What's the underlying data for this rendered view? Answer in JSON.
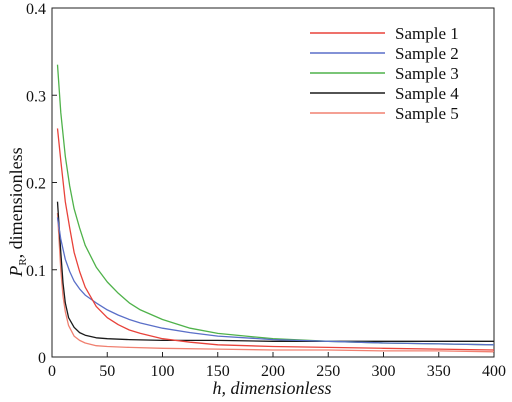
{
  "chart_data": {
    "type": "line",
    "xlabel": "h, dimensionless",
    "ylabel_main": "P",
    "ylabel_sub": "R",
    "ylabel_rest": ", dimensionless",
    "xlim": [
      0,
      400
    ],
    "ylim": [
      0,
      0.4
    ],
    "x_ticks": [
      0,
      50,
      100,
      150,
      200,
      250,
      300,
      350,
      400
    ],
    "x_tick_labels": [
      "0",
      "50",
      "100",
      "150",
      "200",
      "250",
      "300",
      "350",
      "400"
    ],
    "y_ticks": [
      0,
      0.1,
      0.2,
      0.3,
      0.4
    ],
    "y_tick_labels": [
      "0",
      "0.1",
      "0.2",
      "0.3",
      "0.4"
    ],
    "grid": false,
    "legend_position": "top-right",
    "series": [
      {
        "name": "Sample 1",
        "color": "#e8423a",
        "x": [
          5,
          8,
          12,
          16,
          20,
          25,
          30,
          40,
          50,
          60,
          70,
          80,
          100,
          125,
          150,
          200,
          250,
          300,
          350,
          400
        ],
        "y": [
          0.262,
          0.225,
          0.178,
          0.148,
          0.12,
          0.098,
          0.08,
          0.058,
          0.045,
          0.037,
          0.031,
          0.027,
          0.021,
          0.017,
          0.014,
          0.012,
          0.011,
          0.01,
          0.009,
          0.008
        ]
      },
      {
        "name": "Sample 2",
        "color": "#5a6fc8",
        "x": [
          5,
          8,
          12,
          16,
          20,
          25,
          30,
          40,
          50,
          60,
          70,
          80,
          100,
          125,
          150,
          200,
          250,
          300,
          350,
          400
        ],
        "y": [
          0.16,
          0.135,
          0.112,
          0.098,
          0.087,
          0.078,
          0.071,
          0.062,
          0.054,
          0.048,
          0.043,
          0.039,
          0.033,
          0.028,
          0.024,
          0.02,
          0.018,
          0.016,
          0.015,
          0.014
        ]
      },
      {
        "name": "Sample 3",
        "color": "#4fb24a",
        "x": [
          5,
          8,
          12,
          16,
          20,
          25,
          30,
          40,
          50,
          60,
          70,
          80,
          100,
          125,
          150,
          200,
          250,
          300,
          350,
          400
        ],
        "y": [
          0.335,
          0.28,
          0.23,
          0.196,
          0.17,
          0.148,
          0.128,
          0.103,
          0.086,
          0.073,
          0.062,
          0.054,
          0.043,
          0.033,
          0.027,
          0.021,
          0.018,
          0.016,
          0.015,
          0.014
        ]
      },
      {
        "name": "Sample 4",
        "color": "#1a1a1a",
        "x": [
          5,
          8,
          10,
          12,
          15,
          20,
          25,
          30,
          40,
          50,
          70,
          100,
          150,
          200,
          250,
          300,
          350,
          400
        ],
        "y": [
          0.178,
          0.12,
          0.085,
          0.062,
          0.045,
          0.034,
          0.028,
          0.025,
          0.022,
          0.021,
          0.02,
          0.019,
          0.019,
          0.018,
          0.018,
          0.018,
          0.018,
          0.018
        ]
      },
      {
        "name": "Sample 5",
        "color": "#f08070",
        "x": [
          5,
          8,
          10,
          12,
          15,
          20,
          25,
          30,
          40,
          50,
          70,
          100,
          150,
          200,
          250,
          300,
          350,
          400
        ],
        "y": [
          0.165,
          0.1,
          0.07,
          0.052,
          0.036,
          0.024,
          0.019,
          0.016,
          0.013,
          0.012,
          0.011,
          0.01,
          0.009,
          0.008,
          0.008,
          0.007,
          0.007,
          0.006
        ]
      }
    ]
  }
}
